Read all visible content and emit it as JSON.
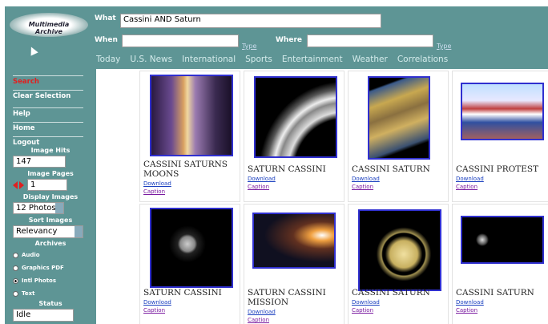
{
  "header": {
    "logo": "Multimedia Archive",
    "what_label": "What",
    "what_value": "Cassini AND Saturn",
    "when_label": "When",
    "when_type": "Type",
    "where_label": "Where",
    "where_type": "Type"
  },
  "nav": [
    "Today",
    "U.S. News",
    "International",
    "Sports",
    "Entertainment",
    "Weather",
    "Correlations"
  ],
  "sidebar": {
    "buttons": [
      "Search",
      "Clear Selection",
      "Help",
      "Home",
      "Logout"
    ],
    "image_hits_label": "Image Hits",
    "image_hits": "147",
    "image_pages_label": "Image Pages",
    "image_page": "1",
    "display_label": "Display Images",
    "display_value": "12 Photos",
    "sort_label": "Sort Images",
    "sort_value": "Relevancy",
    "archives_label": "Archives",
    "archives": [
      "Audio",
      "Graphics PDF",
      "Intl Photos",
      "Text"
    ],
    "status_label": "Status",
    "status_value": "Idle"
  },
  "results": [
    {
      "title": "CASSINI SATURNS MOONS",
      "download": "Download",
      "caption": "Caption"
    },
    {
      "title": "SATURN CASSINI",
      "download": "Download",
      "caption": "Caption"
    },
    {
      "title": "CASSINI SATURN",
      "download": "Download",
      "caption": "Caption"
    },
    {
      "title": "CASSINI PROTEST",
      "download": "Download",
      "caption": "Caption"
    },
    {
      "title": "SATURN CASSINI",
      "download": "Download",
      "caption": "Caption"
    },
    {
      "title": "SATURN CASSINI MISSION",
      "download": "Download",
      "caption": "Caption"
    },
    {
      "title": "CASSINI SATURN",
      "download": "Download",
      "caption": "Caption"
    },
    {
      "title": "CASSINI SATURN",
      "download": "Download",
      "caption": "Caption"
    }
  ]
}
